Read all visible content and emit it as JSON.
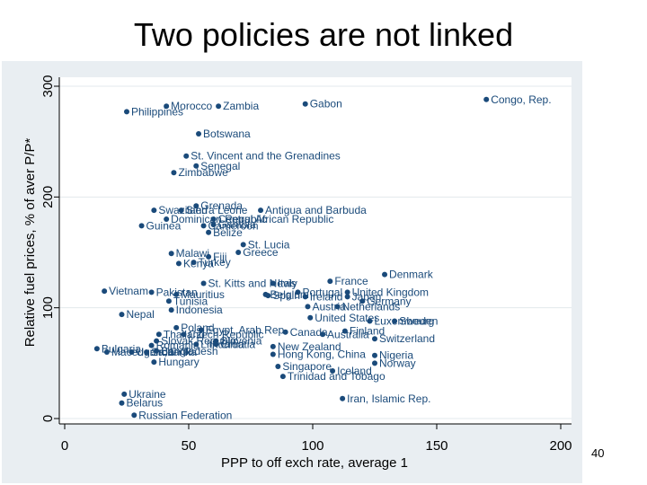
{
  "slide": {
    "title": "Two policies are not linked",
    "page_number": "40"
  },
  "colors": {
    "plot_bg": "#ffffff",
    "outer_bg": "#e9eef2",
    "marker": "#1a4a7a",
    "label": "#1a4a7a",
    "grid": "#e3e8ec"
  },
  "chart_data": {
    "type": "scatter",
    "xlabel": "PPP to off exch rate, average 1",
    "ylabel": "Relative fuel prices, % of aver P/P*",
    "xlim": [
      0,
      200
    ],
    "ylim": [
      0,
      300
    ],
    "xticks": [
      0,
      50,
      100,
      150,
      200
    ],
    "yticks": [
      0,
      100,
      200,
      300
    ],
    "grid": true,
    "points": [
      {
        "label": "Congo, Rep.",
        "x": 170,
        "y": 288
      },
      {
        "label": "Gabon",
        "x": 97,
        "y": 284
      },
      {
        "label": "Morocco",
        "x": 41,
        "y": 282
      },
      {
        "label": "Zambia",
        "x": 62,
        "y": 282
      },
      {
        "label": "Philippines",
        "x": 25,
        "y": 277
      },
      {
        "label": "Botswana",
        "x": 54,
        "y": 257
      },
      {
        "label": "St. Vincent and the Grenadines",
        "x": 49,
        "y": 237
      },
      {
        "label": "Senegal",
        "x": 53,
        "y": 228
      },
      {
        "label": "Zimbabwe",
        "x": 44,
        "y": 222
      },
      {
        "label": "Grenada",
        "x": 53,
        "y": 192
      },
      {
        "label": "Swaziland",
        "x": 36,
        "y": 188
      },
      {
        "label": "Sierra Leone",
        "x": 47,
        "y": 188
      },
      {
        "label": "Antigua and Barbuda",
        "x": 79,
        "y": 188
      },
      {
        "label": "Dominican Republic",
        "x": 41,
        "y": 180
      },
      {
        "label": "Central African Republic",
        "x": 60,
        "y": 180
      },
      {
        "label": "Guinea",
        "x": 31,
        "y": 174
      },
      {
        "label": "Cameroon",
        "x": 56,
        "y": 174
      },
      {
        "label": "Gambia",
        "x": 60,
        "y": 175
      },
      {
        "label": "Belize",
        "x": 58,
        "y": 168
      },
      {
        "label": "St. Lucia",
        "x": 72,
        "y": 157
      },
      {
        "label": "Malawi",
        "x": 43,
        "y": 149
      },
      {
        "label": "Greece",
        "x": 70,
        "y": 150
      },
      {
        "label": "Fiji",
        "x": 58,
        "y": 146
      },
      {
        "label": "Turkey",
        "x": 52,
        "y": 141
      },
      {
        "label": "Kenya",
        "x": 46,
        "y": 140
      },
      {
        "label": "Denmark",
        "x": 129,
        "y": 130
      },
      {
        "label": "France",
        "x": 107,
        "y": 124
      },
      {
        "label": "St. Kitts and Nevis",
        "x": 56,
        "y": 122
      },
      {
        "label": "Italy",
        "x": 84,
        "y": 122
      },
      {
        "label": "Vietnam",
        "x": 16,
        "y": 115
      },
      {
        "label": "Pakistan",
        "x": 35,
        "y": 114
      },
      {
        "label": "United Kingdom",
        "x": 114,
        "y": 114
      },
      {
        "label": "Mauritius",
        "x": 45,
        "y": 112
      },
      {
        "label": "Belgium",
        "x": 81,
        "y": 112
      },
      {
        "label": "Portugal",
        "x": 94,
        "y": 114
      },
      {
        "label": "Spain",
        "x": 82,
        "y": 111
      },
      {
        "label": "Ireland",
        "x": 97,
        "y": 110
      },
      {
        "label": "Japan",
        "x": 114,
        "y": 110
      },
      {
        "label": "Tunisia",
        "x": 42,
        "y": 106
      },
      {
        "label": "Germany",
        "x": 120,
        "y": 106
      },
      {
        "label": "Austria",
        "x": 98,
        "y": 101
      },
      {
        "label": "Netherlands",
        "x": 110,
        "y": 101
      },
      {
        "label": "Indonesia",
        "x": 43,
        "y": 98
      },
      {
        "label": "Nepal",
        "x": 23,
        "y": 94
      },
      {
        "label": "United States",
        "x": 99,
        "y": 91
      },
      {
        "label": "Luxembourg",
        "x": 123,
        "y": 88
      },
      {
        "label": "Sweden",
        "x": 133,
        "y": 88
      },
      {
        "label": "Poland",
        "x": 45,
        "y": 82
      },
      {
        "label": "Egypt, Arab Rep.",
        "x": 55,
        "y": 80
      },
      {
        "label": "Canada",
        "x": 89,
        "y": 78
      },
      {
        "label": "Finland",
        "x": 113,
        "y": 79
      },
      {
        "label": "Thailand",
        "x": 38,
        "y": 76
      },
      {
        "label": "Czech Republic",
        "x": 48,
        "y": 76
      },
      {
        "label": "Australia",
        "x": 104,
        "y": 76
      },
      {
        "label": "Switzerland",
        "x": 125,
        "y": 72
      },
      {
        "label": "Slovak Republic",
        "x": 37,
        "y": 70
      },
      {
        "label": "Slovenia",
        "x": 61,
        "y": 70
      },
      {
        "label": "Bulgaria",
        "x": 13,
        "y": 63
      },
      {
        "label": "Romania",
        "x": 35,
        "y": 66
      },
      {
        "label": "Lithuania",
        "x": 53,
        "y": 67
      },
      {
        "label": "Croatia",
        "x": 61,
        "y": 67
      },
      {
        "label": "New Zealand",
        "x": 84,
        "y": 65
      },
      {
        "label": "Macedonia, FYR",
        "x": 17,
        "y": 60
      },
      {
        "label": "Bangladesh",
        "x": 37,
        "y": 61
      },
      {
        "label": "Hong Kong, China",
        "x": 84,
        "y": 58
      },
      {
        "label": "Nigeria",
        "x": 125,
        "y": 57
      },
      {
        "label": "Uganda",
        "x": 27,
        "y": 60
      },
      {
        "label": "Sri Lanka",
        "x": 33,
        "y": 60
      },
      {
        "label": "Hungary",
        "x": 36,
        "y": 51
      },
      {
        "label": "Norway",
        "x": 125,
        "y": 50
      },
      {
        "label": "Singapore",
        "x": 86,
        "y": 47
      },
      {
        "label": "Iceland",
        "x": 108,
        "y": 43
      },
      {
        "label": "Trinidad and Tobago",
        "x": 88,
        "y": 38
      },
      {
        "label": "Ukraine",
        "x": 24,
        "y": 22
      },
      {
        "label": "Iran, Islamic Rep.",
        "x": 112,
        "y": 18
      },
      {
        "label": "Belarus",
        "x": 23,
        "y": 14
      },
      {
        "label": "Russian Federation",
        "x": 28,
        "y": 3
      }
    ]
  }
}
